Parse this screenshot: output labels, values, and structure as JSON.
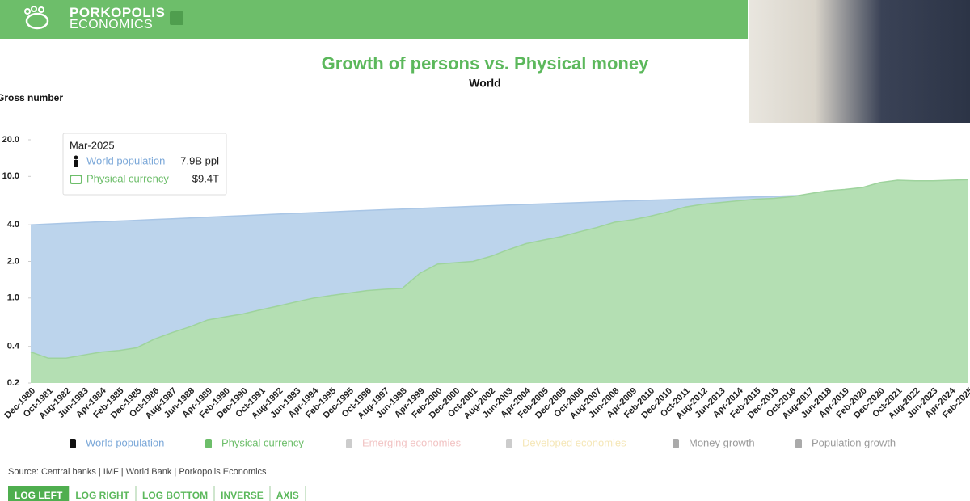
{
  "header": {
    "brand_line1": "PORKOPOLIS",
    "brand_line2": "ECONOMICS"
  },
  "chart_data": {
    "type": "area",
    "title": "Growth of persons vs. Physical money",
    "subtitle": "World",
    "y_label": "Gross number",
    "log_y": true,
    "categories": [
      "Dec-1980",
      "Oct-1981",
      "Aug-1982",
      "Jun-1983",
      "Apr-1984",
      "Feb-1985",
      "Dec-1985",
      "Oct-1986",
      "Aug-1987",
      "Jun-1988",
      "Apr-1989",
      "Feb-1990",
      "Dec-1990",
      "Oct-1991",
      "Aug-1992",
      "Jun-1993",
      "Apr-1994",
      "Feb-1995",
      "Dec-1995",
      "Oct-1996",
      "Aug-1997",
      "Jun-1998",
      "Apr-1999",
      "Feb-2000",
      "Dec-2000",
      "Oct-2001",
      "Aug-2002",
      "Jun-2003",
      "Apr-2004",
      "Feb-2005",
      "Dec-2005",
      "Oct-2006",
      "Aug-2007",
      "Jun-2008",
      "Apr-2009",
      "Feb-2010",
      "Dec-2010",
      "Oct-2011",
      "Aug-2012",
      "Jun-2013",
      "Apr-2014",
      "Feb-2015",
      "Dec-2015",
      "Oct-2016",
      "Aug-2017",
      "Jun-2018",
      "Apr-2019",
      "Feb-2020",
      "Dec-2020",
      "Oct-2021",
      "Aug-2022",
      "Jun-2023",
      "Apr-2024",
      "Feb-2025"
    ],
    "series": [
      {
        "name": "World population",
        "color": "#bcd4ec",
        "line_color": "#a9c6e6",
        "values": [
          4.0,
          4.06,
          4.12,
          4.18,
          4.24,
          4.3,
          4.36,
          4.42,
          4.48,
          4.55,
          4.62,
          4.69,
          4.76,
          4.83,
          4.9,
          4.97,
          5.04,
          5.11,
          5.18,
          5.25,
          5.32,
          5.39,
          5.46,
          5.53,
          5.6,
          5.67,
          5.74,
          5.81,
          5.88,
          5.95,
          6.02,
          6.09,
          6.16,
          6.23,
          6.3,
          6.37,
          6.44,
          6.51,
          6.58,
          6.65,
          6.72,
          6.79,
          6.86,
          6.93,
          7.0,
          7.1,
          7.2,
          7.3,
          7.4,
          7.5,
          7.6,
          7.7,
          7.8,
          7.9
        ]
      },
      {
        "name": "Physical currency",
        "color": "#b4dfb3",
        "line_color": "#9ed39d",
        "values": [
          0.36,
          0.32,
          0.32,
          0.34,
          0.36,
          0.37,
          0.39,
          0.46,
          0.52,
          0.58,
          0.66,
          0.7,
          0.74,
          0.8,
          0.86,
          0.93,
          1.0,
          1.05,
          1.1,
          1.15,
          1.18,
          1.2,
          1.6,
          1.9,
          1.95,
          2.0,
          2.2,
          2.5,
          2.8,
          3.0,
          3.2,
          3.5,
          3.8,
          4.2,
          4.4,
          4.7,
          5.1,
          5.6,
          5.9,
          6.1,
          6.3,
          6.5,
          6.6,
          6.8,
          7.2,
          7.6,
          7.8,
          8.1,
          8.9,
          9.3,
          9.2,
          9.2,
          9.3,
          9.4
        ]
      }
    ],
    "legend_extra": [
      "Emerging economies",
      "Developed economies",
      "Money growth",
      "Population growth"
    ],
    "ylim": [
      0.2,
      20
    ],
    "yticks": [
      0.2,
      0.4,
      {
        "value": 1,
        "label": "1.0"
      },
      {
        "value": 2,
        "label": "2.0"
      },
      {
        "value": 4,
        "label": "4.0"
      },
      {
        "value": 10,
        "label": "10.0"
      },
      {
        "value": 20,
        "label": "20.0"
      }
    ],
    "tooltip": {
      "title": "Mar-2025",
      "rows": [
        {
          "name": "World population",
          "value": "7.9B ppl"
        },
        {
          "name": "Physical currency",
          "value": "$9.4T"
        }
      ]
    },
    "source": "Source: Central banks | IMF | World Bank | Porkopolis Economics"
  },
  "buttons": [
    "LOG LEFT",
    "LOG RIGHT",
    "LOG BOTTOM",
    "INVERSE",
    "AXIS"
  ]
}
